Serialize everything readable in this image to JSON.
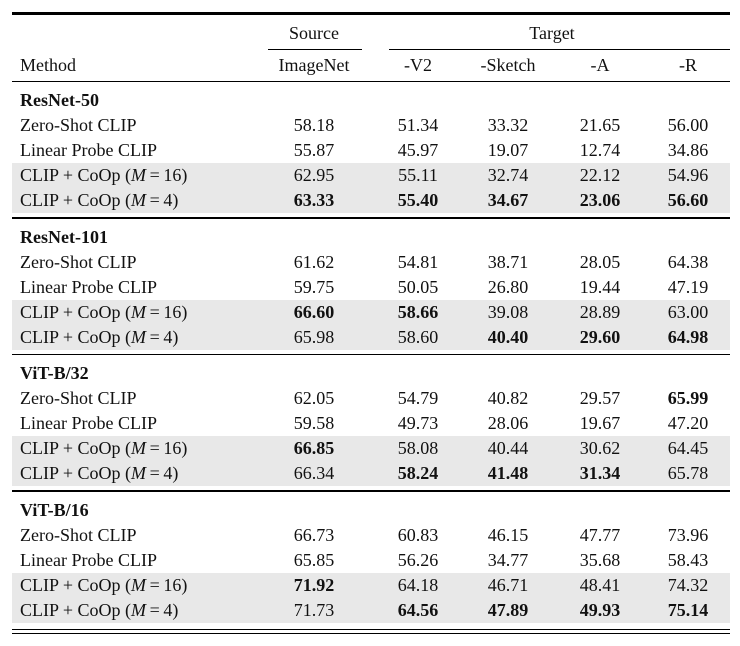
{
  "table": {
    "header": {
      "method_label": "Method",
      "source_group": "Source",
      "target_group": "Target",
      "source_cols": [
        "ImageNet"
      ],
      "target_cols": [
        "-V2",
        "-Sketch",
        "-A",
        "-R"
      ]
    },
    "colors": {
      "highlight_row": "#e8e8e8",
      "text": "#111111",
      "rule": "#000000"
    },
    "sections": [
      {
        "name": "ResNet-50",
        "rows": [
          {
            "method": {
              "prefix": "Zero-Shot CLIP",
              "math": "",
              "suffix": ""
            },
            "highlight": false,
            "values": [
              "58.18",
              "51.34",
              "33.32",
              "21.65",
              "56.00"
            ],
            "bold": [
              false,
              false,
              false,
              false,
              false
            ]
          },
          {
            "method": {
              "prefix": "Linear Probe CLIP",
              "math": "",
              "suffix": ""
            },
            "highlight": false,
            "values": [
              "55.87",
              "45.97",
              "19.07",
              "12.74",
              "34.86"
            ],
            "bold": [
              false,
              false,
              false,
              false,
              false
            ]
          },
          {
            "method": {
              "prefix": "CLIP + CoOp (",
              "math": "M",
              "suffix": " = 16)"
            },
            "highlight": true,
            "values": [
              "62.95",
              "55.11",
              "32.74",
              "22.12",
              "54.96"
            ],
            "bold": [
              false,
              false,
              false,
              false,
              false
            ]
          },
          {
            "method": {
              "prefix": "CLIP + CoOp (",
              "math": "M",
              "suffix": " = 4)"
            },
            "highlight": true,
            "values": [
              "63.33",
              "55.40",
              "34.67",
              "23.06",
              "56.60"
            ],
            "bold": [
              true,
              true,
              true,
              true,
              true
            ]
          }
        ]
      },
      {
        "name": "ResNet-101",
        "rows": [
          {
            "method": {
              "prefix": "Zero-Shot CLIP",
              "math": "",
              "suffix": ""
            },
            "highlight": false,
            "values": [
              "61.62",
              "54.81",
              "38.71",
              "28.05",
              "64.38"
            ],
            "bold": [
              false,
              false,
              false,
              false,
              false
            ]
          },
          {
            "method": {
              "prefix": "Linear Probe CLIP",
              "math": "",
              "suffix": ""
            },
            "highlight": false,
            "values": [
              "59.75",
              "50.05",
              "26.80",
              "19.44",
              "47.19"
            ],
            "bold": [
              false,
              false,
              false,
              false,
              false
            ]
          },
          {
            "method": {
              "prefix": "CLIP + CoOp (",
              "math": "M",
              "suffix": " = 16)"
            },
            "highlight": true,
            "values": [
              "66.60",
              "58.66",
              "39.08",
              "28.89",
              "63.00"
            ],
            "bold": [
              true,
              true,
              false,
              false,
              false
            ]
          },
          {
            "method": {
              "prefix": "CLIP + CoOp (",
              "math": "M",
              "suffix": " = 4)"
            },
            "highlight": true,
            "values": [
              "65.98",
              "58.60",
              "40.40",
              "29.60",
              "64.98"
            ],
            "bold": [
              false,
              false,
              true,
              true,
              true
            ]
          }
        ]
      },
      {
        "name": "ViT-B/32",
        "rows": [
          {
            "method": {
              "prefix": "Zero-Shot CLIP",
              "math": "",
              "suffix": ""
            },
            "highlight": false,
            "values": [
              "62.05",
              "54.79",
              "40.82",
              "29.57",
              "65.99"
            ],
            "bold": [
              false,
              false,
              false,
              false,
              true
            ]
          },
          {
            "method": {
              "prefix": "Linear Probe CLIP",
              "math": "",
              "suffix": ""
            },
            "highlight": false,
            "values": [
              "59.58",
              "49.73",
              "28.06",
              "19.67",
              "47.20"
            ],
            "bold": [
              false,
              false,
              false,
              false,
              false
            ]
          },
          {
            "method": {
              "prefix": "CLIP + CoOp (",
              "math": "M",
              "suffix": " = 16)"
            },
            "highlight": true,
            "values": [
              "66.85",
              "58.08",
              "40.44",
              "30.62",
              "64.45"
            ],
            "bold": [
              true,
              false,
              false,
              false,
              false
            ]
          },
          {
            "method": {
              "prefix": "CLIP + CoOp (",
              "math": "M",
              "suffix": " = 4)"
            },
            "highlight": true,
            "values": [
              "66.34",
              "58.24",
              "41.48",
              "31.34",
              "65.78"
            ],
            "bold": [
              false,
              true,
              true,
              true,
              false
            ]
          }
        ]
      },
      {
        "name": "ViT-B/16",
        "rows": [
          {
            "method": {
              "prefix": "Zero-Shot CLIP",
              "math": "",
              "suffix": ""
            },
            "highlight": false,
            "values": [
              "66.73",
              "60.83",
              "46.15",
              "47.77",
              "73.96"
            ],
            "bold": [
              false,
              false,
              false,
              false,
              false
            ]
          },
          {
            "method": {
              "prefix": "Linear Probe CLIP",
              "math": "",
              "suffix": ""
            },
            "highlight": false,
            "values": [
              "65.85",
              "56.26",
              "34.77",
              "35.68",
              "58.43"
            ],
            "bold": [
              false,
              false,
              false,
              false,
              false
            ]
          },
          {
            "method": {
              "prefix": "CLIP + CoOp (",
              "math": "M",
              "suffix": " = 16)"
            },
            "highlight": true,
            "values": [
              "71.92",
              "64.18",
              "46.71",
              "48.41",
              "74.32"
            ],
            "bold": [
              true,
              false,
              false,
              false,
              false
            ]
          },
          {
            "method": {
              "prefix": "CLIP + CoOp (",
              "math": "M",
              "suffix": " = 4)"
            },
            "highlight": true,
            "values": [
              "71.73",
              "64.56",
              "47.89",
              "49.93",
              "75.14"
            ],
            "bold": [
              false,
              true,
              true,
              true,
              true
            ]
          }
        ]
      }
    ]
  }
}
